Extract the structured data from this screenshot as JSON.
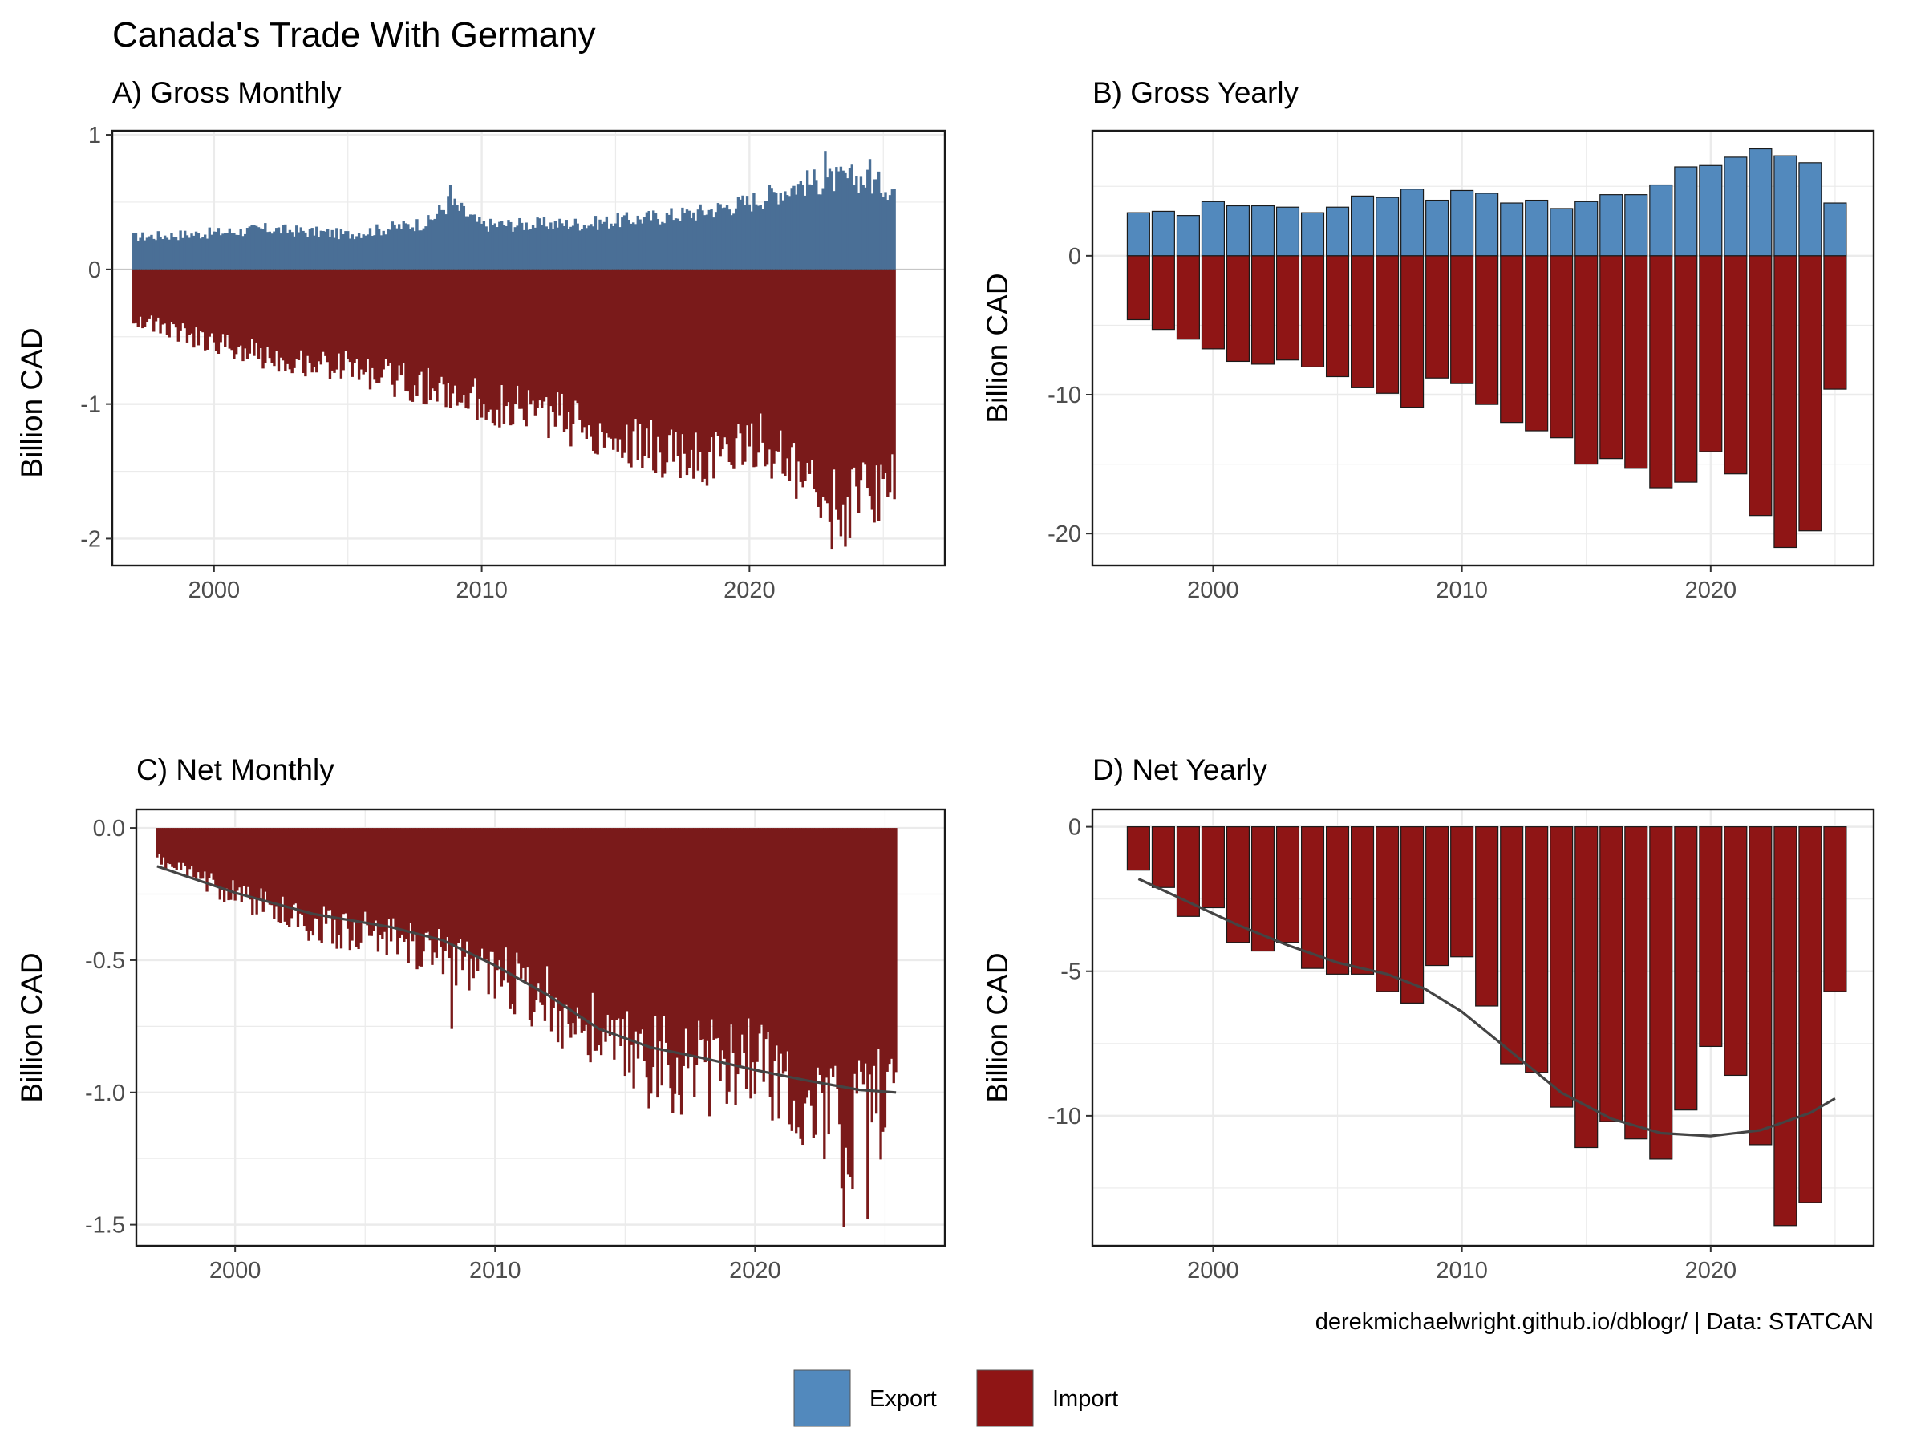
{
  "title": "Canada's Trade With Germany",
  "caption": "derekmichaelwright.github.io/dblogr/ | Data: STATCAN",
  "colors": {
    "export": "#5289bd",
    "import": "#8f1515",
    "import_monthly": "#7a1a1a",
    "export_monthly": "#4a6f96",
    "smooth": "#444444"
  },
  "legend": [
    {
      "label": "Export",
      "color": "#5289bd"
    },
    {
      "label": "Import",
      "color": "#8f1515"
    }
  ],
  "chart_data": [
    {
      "id": "A",
      "type": "bar",
      "title": "A) Gross Monthly",
      "ylabel": "Billion CAD",
      "xlim": [
        1996.2,
        2027.3
      ],
      "ylim": [
        -2.2,
        1.03
      ],
      "xticks": [
        2000,
        2010,
        2020
      ],
      "yticks": [
        1,
        0,
        -1,
        -2
      ],
      "ytick_labels": [
        "1",
        "0",
        "-1",
        "-2"
      ],
      "start": 1997.0,
      "end": 2025.42,
      "export_anchors": [
        [
          1997.0,
          0.24
        ],
        [
          2000.0,
          0.27
        ],
        [
          2002.0,
          0.3
        ],
        [
          2005.0,
          0.26
        ],
        [
          2008.0,
          0.35
        ],
        [
          2008.8,
          0.5
        ],
        [
          2010.0,
          0.33
        ],
        [
          2014.0,
          0.34
        ],
        [
          2016.0,
          0.38
        ],
        [
          2018.0,
          0.42
        ],
        [
          2020.0,
          0.5
        ],
        [
          2022.0,
          0.64
        ],
        [
          2024.0,
          0.68
        ],
        [
          2025.42,
          0.6
        ]
      ],
      "import_anchors": [
        [
          1997.0,
          -0.36
        ],
        [
          2000.0,
          -0.55
        ],
        [
          2003.0,
          -0.68
        ],
        [
          2005.0,
          -0.72
        ],
        [
          2008.0,
          -0.88
        ],
        [
          2010.0,
          -0.98
        ],
        [
          2013.0,
          -1.1
        ],
        [
          2015.0,
          -1.25
        ],
        [
          2017.0,
          -1.38
        ],
        [
          2019.0,
          -1.4
        ],
        [
          2020.3,
          -1.25
        ],
        [
          2022.0,
          -1.6
        ],
        [
          2023.0,
          -1.8
        ],
        [
          2024.0,
          -1.7
        ],
        [
          2025.42,
          -1.6
        ]
      ],
      "export_extremes": [
        [
          2008.83,
          0.63
        ],
        [
          2022.8,
          0.88
        ],
        [
          2024.5,
          0.82
        ]
      ],
      "import_extremes": [
        [
          2023.6,
          -2.06
        ],
        [
          2024.8,
          -1.87
        ]
      ]
    },
    {
      "id": "B",
      "type": "bar",
      "title": "B) Gross Yearly",
      "ylabel": "Billion CAD",
      "xlim": [
        1995.15,
        2026.55
      ],
      "ylim": [
        -22.3,
        9.0
      ],
      "xticks": [
        2000,
        2010,
        2020
      ],
      "yticks": [
        0,
        -10,
        -20
      ],
      "ytick_labels": [
        "0",
        "-10",
        "-20"
      ],
      "years": [
        1997,
        1998,
        1999,
        2000,
        2001,
        2002,
        2003,
        2004,
        2005,
        2006,
        2007,
        2008,
        2009,
        2010,
        2011,
        2012,
        2013,
        2014,
        2015,
        2016,
        2017,
        2018,
        2019,
        2020,
        2021,
        2022,
        2023,
        2024,
        2025
      ],
      "export": [
        3.1,
        3.2,
        2.9,
        3.9,
        3.6,
        3.6,
        3.5,
        3.1,
        3.5,
        4.3,
        4.2,
        4.8,
        4.0,
        4.7,
        4.5,
        3.8,
        4.0,
        3.4,
        3.9,
        4.4,
        4.4,
        5.1,
        6.4,
        6.5,
        7.1,
        7.7,
        7.2,
        6.7,
        3.8
      ],
      "import": [
        -4.6,
        -5.3,
        -6.0,
        -6.7,
        -7.6,
        -7.8,
        -7.5,
        -8.0,
        -8.7,
        -9.5,
        -9.9,
        -10.9,
        -8.8,
        -9.2,
        -10.7,
        -12.0,
        -12.6,
        -13.1,
        -15.0,
        -14.6,
        -15.3,
        -16.7,
        -16.3,
        -14.1,
        -15.7,
        -18.7,
        -21.0,
        -19.8,
        -9.6
      ]
    },
    {
      "id": "C",
      "type": "bar",
      "title": "C) Net Monthly",
      "ylabel": "Billion CAD",
      "xlim": [
        1996.2,
        2027.3
      ],
      "ylim": [
        -1.58,
        0.07
      ],
      "xticks": [
        2000,
        2010,
        2020
      ],
      "yticks": [
        0.0,
        -0.5,
        -1.0,
        -1.5
      ],
      "ytick_labels": [
        "0.0",
        "-0.5",
        "-1.0",
        "-1.5"
      ],
      "start": 1997.0,
      "end": 2025.42,
      "net_anchors": [
        [
          1997.0,
          -0.12
        ],
        [
          2000.0,
          -0.25
        ],
        [
          2003.0,
          -0.36
        ],
        [
          2006.0,
          -0.42
        ],
        [
          2008.0,
          -0.48
        ],
        [
          2010.0,
          -0.55
        ],
        [
          2012.0,
          -0.65
        ],
        [
          2014.0,
          -0.8
        ],
        [
          2016.0,
          -0.88
        ],
        [
          2018.0,
          -0.92
        ],
        [
          2020.0,
          -0.85
        ],
        [
          2022.0,
          -1.05
        ],
        [
          2023.5,
          -1.15
        ],
        [
          2025.42,
          -1.0
        ]
      ],
      "net_extremes": [
        [
          2008.3,
          -0.76
        ],
        [
          2023.45,
          -1.51
        ],
        [
          2024.3,
          -1.48
        ]
      ],
      "smooth": [
        [
          1997.0,
          -0.145
        ],
        [
          2000.0,
          -0.245
        ],
        [
          2003.0,
          -0.325
        ],
        [
          2006.0,
          -0.375
        ],
        [
          2008.0,
          -0.425
        ],
        [
          2010.0,
          -0.52
        ],
        [
          2012.0,
          -0.63
        ],
        [
          2014.0,
          -0.76
        ],
        [
          2016.0,
          -0.83
        ],
        [
          2018.0,
          -0.87
        ],
        [
          2020.0,
          -0.915
        ],
        [
          2022.0,
          -0.955
        ],
        [
          2024.0,
          -0.99
        ],
        [
          2025.42,
          -1.0
        ]
      ]
    },
    {
      "id": "D",
      "type": "bar",
      "title": "D) Net Yearly",
      "ylabel": "Billion CAD",
      "xlim": [
        1995.15,
        2026.55
      ],
      "ylim": [
        -14.5,
        0.6
      ],
      "xticks": [
        2000,
        2010,
        2020
      ],
      "yticks": [
        0,
        -5,
        -10
      ],
      "ytick_labels": [
        "0",
        "-5",
        "-10"
      ],
      "years": [
        1997,
        1998,
        1999,
        2000,
        2001,
        2002,
        2003,
        2004,
        2005,
        2006,
        2007,
        2008,
        2009,
        2010,
        2011,
        2012,
        2013,
        2014,
        2015,
        2016,
        2017,
        2018,
        2019,
        2020,
        2021,
        2022,
        2023,
        2024,
        2025
      ],
      "import": [
        -1.5,
        -2.1,
        -3.1,
        -2.8,
        -4.0,
        -4.3,
        -4.0,
        -4.9,
        -5.1,
        -5.1,
        -5.7,
        -6.1,
        -4.8,
        -4.5,
        -6.2,
        -8.2,
        -8.5,
        -9.7,
        -11.1,
        -10.2,
        -10.8,
        -11.5,
        -9.8,
        -7.6,
        -8.6,
        -11.0,
        -13.8,
        -13.0,
        -5.7
      ],
      "smooth": [
        [
          1997.0,
          -1.8
        ],
        [
          1999.0,
          -2.6
        ],
        [
          2001.0,
          -3.4
        ],
        [
          2003.0,
          -4.1
        ],
        [
          2005.0,
          -4.7
        ],
        [
          2007.0,
          -5.1
        ],
        [
          2008.5,
          -5.6
        ],
        [
          2010.0,
          -6.4
        ],
        [
          2012.0,
          -7.8
        ],
        [
          2014.0,
          -9.2
        ],
        [
          2016.0,
          -10.1
        ],
        [
          2018.0,
          -10.6
        ],
        [
          2020.0,
          -10.7
        ],
        [
          2022.0,
          -10.5
        ],
        [
          2024.0,
          -9.9
        ],
        [
          2025.0,
          -9.4
        ]
      ]
    }
  ]
}
